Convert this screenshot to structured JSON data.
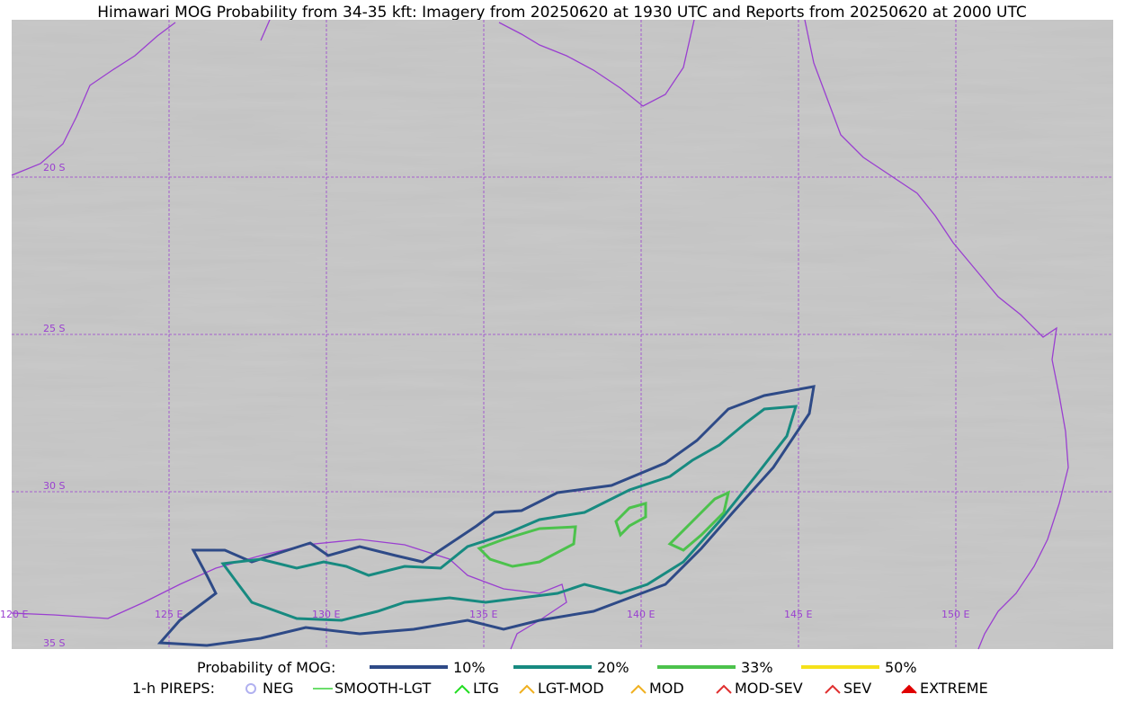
{
  "header": {
    "title": "Himawari MOG Probability from 34-35 kft: Imagery from 20250620 at 1930 UTC and Reports from 20250620 at 2000 UTC"
  },
  "map": {
    "lat_labels": [
      "20 S",
      "25 S",
      "30 S",
      "35 S"
    ],
    "lon_labels": [
      "120 E",
      "125 E",
      "130 E",
      "135 E",
      "140 E",
      "145 E",
      "150 E"
    ]
  },
  "legend": {
    "probability": {
      "label": "Probability of MOG:",
      "items": [
        {
          "name": "10%",
          "color": "#2e4a87"
        },
        {
          "name": "20%",
          "color": "#178a80"
        },
        {
          "name": "33%",
          "color": "#4cc24c"
        },
        {
          "name": "50%",
          "color": "#f5e11a"
        }
      ]
    },
    "pireps": {
      "label": "1-h PIREPS:",
      "items": [
        {
          "name": "NEG",
          "color": "#b0b0f0"
        },
        {
          "name": "SMOOTH-LGT",
          "color": "#3cd43c"
        },
        {
          "name": "LTG",
          "color": "#22dd22"
        },
        {
          "name": "LGT-MOD",
          "color": "#f0b020"
        },
        {
          "name": "MOD",
          "color": "#f0b020"
        },
        {
          "name": "MOD-SEV",
          "color": "#e03030"
        },
        {
          "name": "SEV",
          "color": "#e03030"
        },
        {
          "name": "EXTREME",
          "color": "#e00000"
        }
      ]
    }
  }
}
